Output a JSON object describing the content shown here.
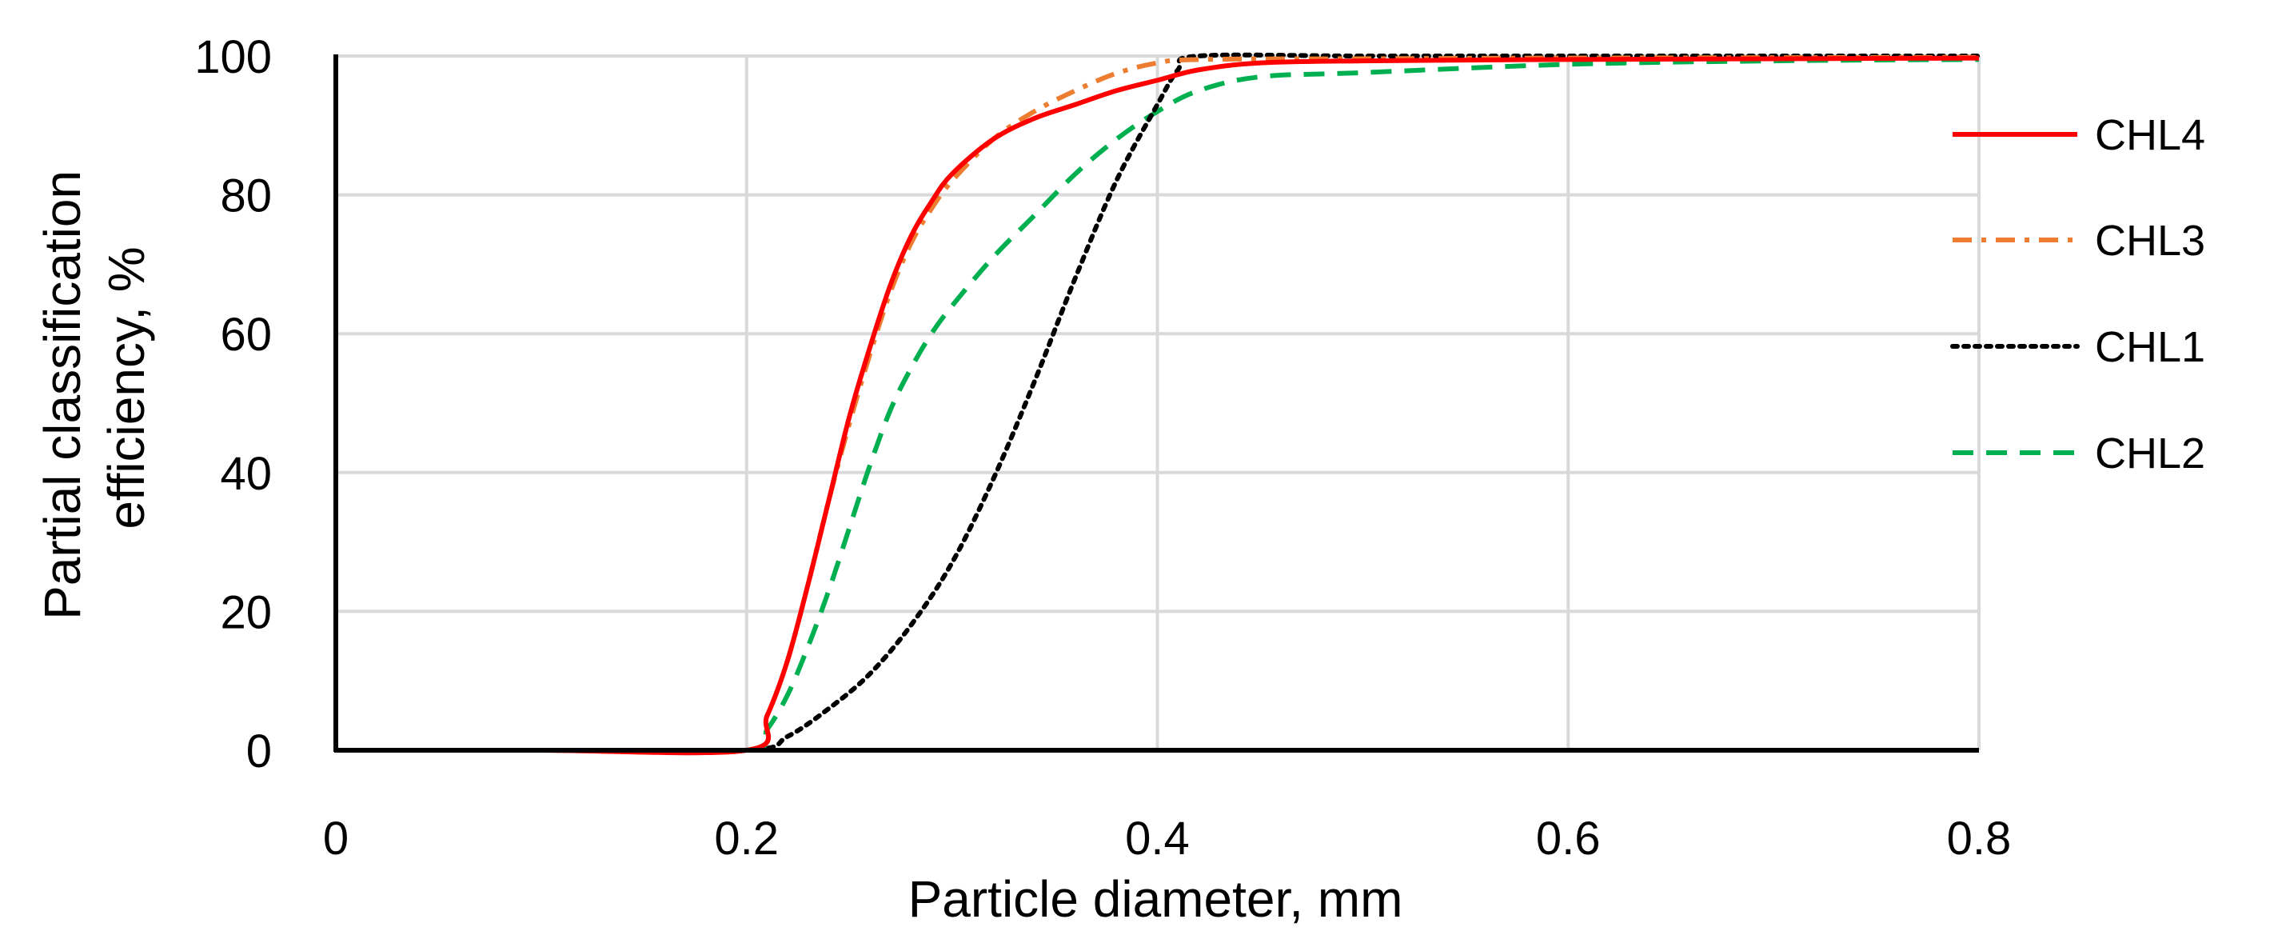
{
  "chart_data": {
    "type": "line",
    "title": "",
    "xlabel": "Particle diameter, mm",
    "ylabel_line1": "Partial classification",
    "ylabel_line2": "efficiency, %",
    "xlim": [
      0,
      0.8
    ],
    "ylim": [
      0,
      100
    ],
    "x_ticks": [
      "0",
      "0.2",
      "0.4",
      "0.6",
      "0.8"
    ],
    "y_ticks": [
      "0",
      "20",
      "40",
      "60",
      "80",
      "100"
    ],
    "x_tick_values": [
      0,
      0.2,
      0.4,
      0.6,
      0.8
    ],
    "y_tick_values": [
      0,
      20,
      40,
      60,
      80,
      100
    ],
    "grid": true,
    "legend_position": "right",
    "series": [
      {
        "name": "CHL4",
        "color": "#ff0000",
        "style": "solid",
        "points": [
          [
            0.02,
            0
          ],
          [
            0.1,
            0
          ],
          [
            0.2,
            0
          ],
          [
            0.21,
            5
          ],
          [
            0.22,
            13
          ],
          [
            0.23,
            24
          ],
          [
            0.24,
            36
          ],
          [
            0.25,
            48
          ],
          [
            0.26,
            58
          ],
          [
            0.27,
            67
          ],
          [
            0.28,
            74
          ],
          [
            0.29,
            79
          ],
          [
            0.3,
            83
          ],
          [
            0.32,
            88
          ],
          [
            0.34,
            91
          ],
          [
            0.36,
            93
          ],
          [
            0.38,
            95
          ],
          [
            0.4,
            96.5
          ],
          [
            0.42,
            98
          ],
          [
            0.45,
            99
          ],
          [
            0.5,
            99.3
          ],
          [
            0.6,
            99.5
          ],
          [
            0.7,
            99.6
          ],
          [
            0.8,
            99.7
          ]
        ]
      },
      {
        "name": "CHL3",
        "color": "#ed7d31",
        "style": "dashdot",
        "points": [
          [
            0.02,
            0
          ],
          [
            0.1,
            0
          ],
          [
            0.2,
            0
          ],
          [
            0.21,
            5
          ],
          [
            0.22,
            13
          ],
          [
            0.23,
            24
          ],
          [
            0.24,
            36
          ],
          [
            0.25,
            47
          ],
          [
            0.26,
            57
          ],
          [
            0.27,
            66
          ],
          [
            0.28,
            73
          ],
          [
            0.29,
            78
          ],
          [
            0.3,
            82
          ],
          [
            0.32,
            88
          ],
          [
            0.34,
            92
          ],
          [
            0.36,
            95
          ],
          [
            0.38,
            97.5
          ],
          [
            0.4,
            99
          ],
          [
            0.42,
            99.5
          ],
          [
            0.5,
            99.6
          ],
          [
            0.6,
            99.7
          ],
          [
            0.8,
            99.8
          ]
        ]
      },
      {
        "name": "CHL1",
        "color": "#000000",
        "style": "dotted",
        "points": [
          [
            0.02,
            0
          ],
          [
            0.1,
            0
          ],
          [
            0.2,
            0
          ],
          [
            0.22,
            2
          ],
          [
            0.24,
            6
          ],
          [
            0.26,
            11
          ],
          [
            0.28,
            18
          ],
          [
            0.3,
            27
          ],
          [
            0.32,
            39
          ],
          [
            0.34,
            53
          ],
          [
            0.36,
            68
          ],
          [
            0.38,
            82
          ],
          [
            0.4,
            93
          ],
          [
            0.41,
            98
          ],
          [
            0.42,
            100
          ],
          [
            0.5,
            100
          ],
          [
            0.6,
            100
          ],
          [
            0.7,
            100
          ],
          [
            0.8,
            100
          ]
        ]
      },
      {
        "name": "CHL2",
        "color": "#00b050",
        "style": "dashed",
        "points": [
          [
            0.02,
            0
          ],
          [
            0.1,
            0
          ],
          [
            0.2,
            0
          ],
          [
            0.21,
            3
          ],
          [
            0.22,
            8
          ],
          [
            0.23,
            15
          ],
          [
            0.24,
            23
          ],
          [
            0.25,
            32
          ],
          [
            0.26,
            41
          ],
          [
            0.27,
            49
          ],
          [
            0.28,
            55
          ],
          [
            0.29,
            60
          ],
          [
            0.3,
            64
          ],
          [
            0.32,
            71
          ],
          [
            0.34,
            77
          ],
          [
            0.36,
            83
          ],
          [
            0.38,
            88
          ],
          [
            0.4,
            92
          ],
          [
            0.42,
            95
          ],
          [
            0.45,
            97
          ],
          [
            0.5,
            97.6
          ],
          [
            0.6,
            98.8
          ],
          [
            0.7,
            99.3
          ],
          [
            0.8,
            99.5
          ]
        ]
      }
    ]
  }
}
